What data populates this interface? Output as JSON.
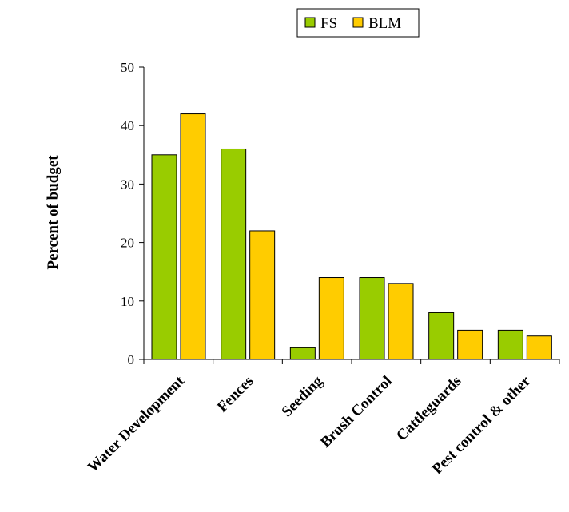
{
  "chart_data": {
    "type": "bar",
    "categories": [
      "Water Development",
      "Fences",
      "Seeding",
      "Brush Control",
      "Cattleguards",
      "Pest control & other"
    ],
    "series": [
      {
        "name": "FS",
        "values": [
          35,
          36,
          2,
          14,
          8,
          5
        ],
        "color": "#99cc00"
      },
      {
        "name": "BLM",
        "values": [
          42,
          22,
          14,
          13,
          5,
          4
        ],
        "color": "#ffcc00"
      }
    ],
    "title": "",
    "xlabel": "",
    "ylabel": "Percent of budget",
    "ylim": [
      0,
      50
    ],
    "yticks": [
      0,
      10,
      20,
      30,
      40,
      50
    ],
    "grid": false,
    "legend_position": "top-right"
  }
}
